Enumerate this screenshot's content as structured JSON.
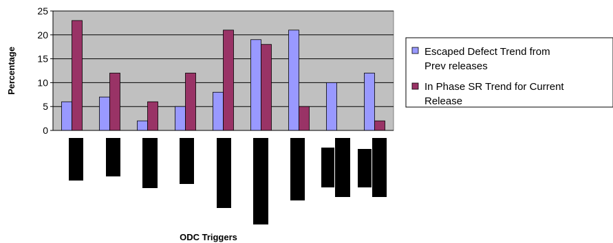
{
  "chart_data": {
    "type": "bar",
    "xlabel": "ODC Triggers",
    "ylabel": "Percentage",
    "ylim": [
      0,
      25
    ],
    "yticks": [
      0,
      5,
      10,
      15,
      20,
      25
    ],
    "grid": true,
    "legend_position": "right",
    "categories": [
      "",
      "",
      "",
      "",
      "",
      "",
      "",
      "",
      ""
    ],
    "series": [
      {
        "name": "Escaped Defect Trend from Prev releases",
        "color": "#9999ff",
        "values": [
          6,
          7,
          2,
          5,
          8,
          19,
          21,
          10,
          12
        ]
      },
      {
        "name": "In Phase SR Trend for Current Release",
        "color": "#993366",
        "values": [
          23,
          12,
          6,
          12,
          21,
          18,
          5,
          0,
          2
        ]
      }
    ],
    "legend_lines": [
      [
        "Escaped Defect Trend from",
        "Prev releases"
      ],
      [
        "In Phase SR Trend for Current",
        "Release"
      ]
    ],
    "plot_background": "#c0c0c0"
  }
}
